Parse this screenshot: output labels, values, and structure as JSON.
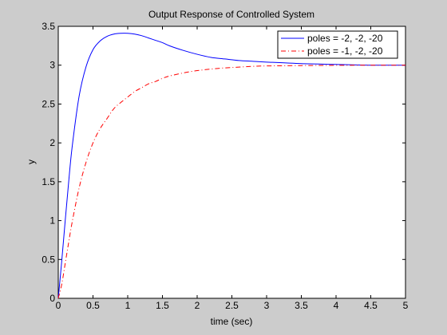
{
  "chart_data": {
    "type": "line",
    "title": "Output Response of Controlled System",
    "xlabel": "time (sec)",
    "ylabel": "y",
    "xlim": [
      0,
      5
    ],
    "ylim": [
      0,
      3.5
    ],
    "x_ticks": [
      "0",
      "0.5",
      "1",
      "1.5",
      "2",
      "2.5",
      "3",
      "3.5",
      "4",
      "4.5",
      "5"
    ],
    "y_ticks": [
      "0",
      "0.5",
      "1",
      "1.5",
      "2",
      "2.5",
      "3",
      "3.5"
    ],
    "grid": false,
    "legend_position": "top-right",
    "x": [
      0,
      0.05,
      0.1,
      0.15,
      0.2,
      0.3,
      0.4,
      0.5,
      0.6,
      0.7,
      0.8,
      0.9,
      1.0,
      1.1,
      1.2,
      1.3,
      1.4,
      1.5,
      1.6,
      1.8,
      2.0,
      2.2,
      2.4,
      2.6,
      2.8,
      3.0,
      3.5,
      4.0,
      4.5,
      5.0
    ],
    "series": [
      {
        "name": "poles = -2, -2, -20",
        "color": "#0000ff",
        "line_style": "solid",
        "values": [
          0,
          0.48,
          1.0,
          1.5,
          1.95,
          2.6,
          2.98,
          3.2,
          3.31,
          3.37,
          3.4,
          3.41,
          3.41,
          3.4,
          3.38,
          3.35,
          3.32,
          3.29,
          3.25,
          3.19,
          3.14,
          3.1,
          3.08,
          3.06,
          3.05,
          3.04,
          3.02,
          3.01,
          3.0,
          3.0
        ]
      },
      {
        "name": "poles = -1, -2, -20",
        "color": "#ff0000",
        "line_style": "dashdot",
        "values": [
          0,
          0.18,
          0.45,
          0.72,
          0.98,
          1.42,
          1.75,
          2.0,
          2.18,
          2.31,
          2.44,
          2.52,
          2.59,
          2.66,
          2.71,
          2.76,
          2.79,
          2.83,
          2.86,
          2.9,
          2.93,
          2.95,
          2.965,
          2.975,
          2.985,
          2.99,
          2.995,
          2.998,
          3.0,
          3.0
        ]
      }
    ]
  }
}
